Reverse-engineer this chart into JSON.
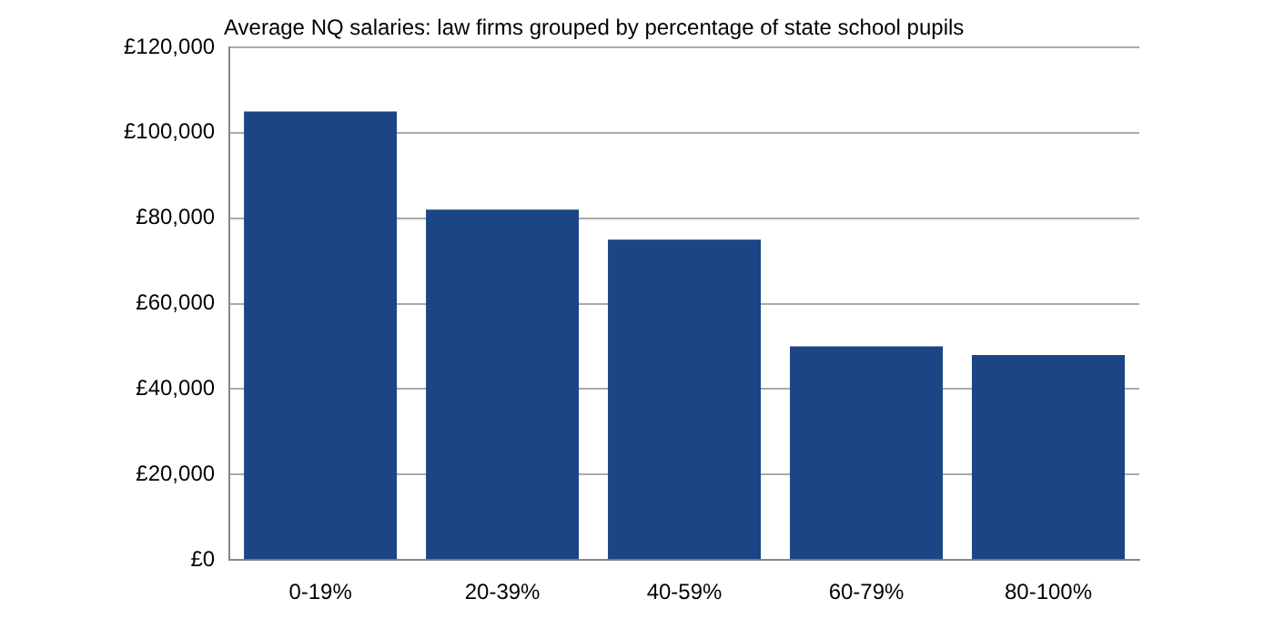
{
  "chart_data": {
    "type": "bar",
    "title": "Average NQ salaries: law firms grouped by percentage of state school pupils",
    "categories": [
      "0-19%",
      "20-39%",
      "40-59%",
      "60-79%",
      "80-100%"
    ],
    "values": [
      105000,
      82000,
      75000,
      50000,
      48000
    ],
    "color": "#1b4584",
    "ylim": [
      0,
      120000
    ],
    "yticks": [
      {
        "value": 0,
        "label": "£0"
      },
      {
        "value": 20000,
        "label": "£20,000"
      },
      {
        "value": 40000,
        "label": "£40,000"
      },
      {
        "value": 60000,
        "label": "£60,000"
      },
      {
        "value": 80000,
        "label": "£80,000"
      },
      {
        "value": 100000,
        "label": "£100,000"
      },
      {
        "value": 120000,
        "label": "£120,000"
      }
    ],
    "grid": "y",
    "legend": false
  }
}
